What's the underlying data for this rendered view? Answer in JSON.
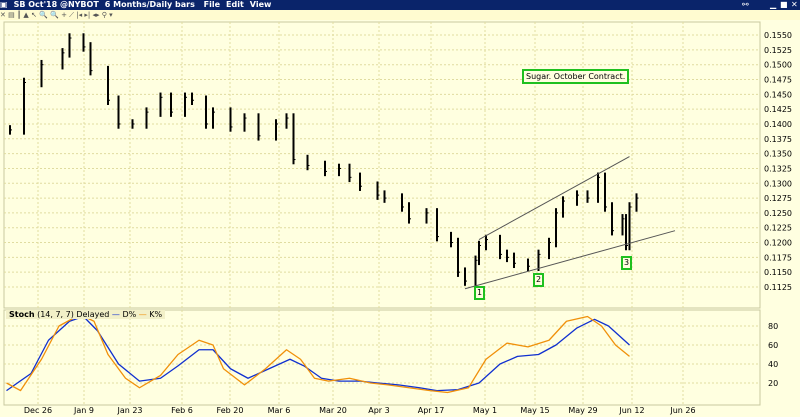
{
  "window": {
    "symbol": "SB Oct'18 @NYBOT",
    "timeframe": "6 Months/Daily bars",
    "menu": [
      "File",
      "Edit",
      "View"
    ]
  },
  "toolbar": {
    "icons": [
      "close-icon",
      "bar-icon",
      "ohlc-icon",
      "mountain-icon",
      "cursor-icon",
      "zoom-in-icon",
      "zoom-out-icon",
      "crosshair-icon",
      "trendline-icon",
      "scroll-left-icon",
      "scroll-right-icon",
      "fit-icon",
      "link-icon",
      "dropdown-icon"
    ]
  },
  "annotation": "Sugar. October Contract.",
  "wave_labels": [
    {
      "text": "1",
      "date": "2018-05-01",
      "y": 0.111
    },
    {
      "text": "2",
      "date": "2018-05-17",
      "y": 0.1133
    },
    {
      "text": "3",
      "date": "2018-06-12",
      "y": 0.1162
    }
  ],
  "stoch_legend": {
    "name": "Stoch",
    "params": "(14, 7, 7) Delayed",
    "d": "D%",
    "k": "K%"
  },
  "colors": {
    "background": "#ffffe0",
    "titlebar": "#0a246a",
    "d_line": "#1030d0",
    "k_line": "#f0900a",
    "label_border": "#1fc01f"
  },
  "chart_data": [
    {
      "type": "bar",
      "title": "",
      "yticks": [
        "0.1125",
        "0.1150",
        "0.1175",
        "0.1200",
        "0.1225",
        "0.1250",
        "0.1275",
        "0.1300",
        "0.1325",
        "0.1350",
        "0.1375",
        "0.1400",
        "0.1425",
        "0.1450",
        "0.1475",
        "0.1500",
        "0.1525",
        "0.1550"
      ],
      "ylim": [
        0.111,
        0.156
      ],
      "xticks": [
        "Dec 26",
        "Jan 9",
        "Jan 23",
        "Feb 6",
        "Feb 20",
        "Mar 6",
        "Mar 20",
        "Apr 3",
        "Apr 17",
        "May 1",
        "May 15",
        "May 29",
        "Jun 12",
        "Jun 26"
      ],
      "grid": true,
      "series": [
        {
          "x": [
            "2017-12-18",
            "2017-12-22",
            "2017-12-27",
            "2018-01-02",
            "2018-01-04",
            "2018-01-08",
            "2018-01-10",
            "2018-01-15",
            "2018-01-18",
            "2018-01-22",
            "2018-01-26",
            "2018-01-30",
            "2018-02-02",
            "2018-02-06",
            "2018-02-08",
            "2018-02-12",
            "2018-02-14",
            "2018-02-19",
            "2018-02-23",
            "2018-02-27",
            "2018-03-04",
            "2018-03-07",
            "2018-03-09",
            "2018-03-13",
            "2018-03-18",
            "2018-03-22",
            "2018-03-25",
            "2018-03-28",
            "2018-04-02",
            "2018-04-04",
            "2018-04-09",
            "2018-04-11",
            "2018-04-16",
            "2018-04-19",
            "2018-04-23",
            "2018-04-25",
            "2018-04-27",
            "2018-04-30",
            "2018-05-01",
            "2018-05-03",
            "2018-05-07",
            "2018-05-09",
            "2018-05-11",
            "2018-05-15",
            "2018-05-18",
            "2018-05-21",
            "2018-05-23",
            "2018-05-25",
            "2018-05-29",
            "2018-06-01",
            "2018-06-04",
            "2018-06-06",
            "2018-06-08",
            "2018-06-11",
            "2018-06-12",
            "2018-06-13",
            "2018-06-15"
          ],
          "close": [
            0.139,
            0.147,
            0.15,
            0.152,
            0.1545,
            0.153,
            0.149,
            0.144,
            0.14,
            0.14,
            0.142,
            0.1445,
            0.142,
            0.1445,
            0.144,
            0.14,
            0.142,
            0.1395,
            0.141,
            0.138,
            0.14,
            0.141,
            0.134,
            0.133,
            0.132,
            0.1325,
            0.131,
            0.1295,
            0.128,
            0.1275,
            0.126,
            0.124,
            0.125,
            0.121,
            0.12,
            0.115,
            0.1135,
            0.117,
            0.1195,
            0.1205,
            0.118,
            0.1175,
            0.1165,
            0.116,
            0.118,
            0.12,
            0.125,
            0.127,
            0.128,
            0.1275,
            0.131,
            0.126,
            0.122,
            0.124,
            0.1195,
            0.126,
            0.1275
          ]
        }
      ],
      "trendlines": [
        {
          "from": [
            "2018-05-01",
            0.1205
          ],
          "to": [
            "2018-06-13",
            0.1345
          ]
        },
        {
          "from": [
            "2018-04-27",
            0.1122
          ],
          "to": [
            "2018-06-26",
            0.122
          ]
        }
      ]
    },
    {
      "type": "line",
      "title": "Stoch",
      "yticks": [
        "20",
        "40",
        "60",
        "80"
      ],
      "ylim": [
        0,
        100
      ],
      "series": [
        {
          "name": "D%",
          "x": [
            "2017-12-17",
            "2017-12-24",
            "2017-12-29",
            "2018-01-04",
            "2018-01-08",
            "2018-01-12",
            "2018-01-18",
            "2018-01-24",
            "2018-01-30",
            "2018-02-04",
            "2018-02-10",
            "2018-02-14",
            "2018-02-19",
            "2018-02-24",
            "2018-03-02",
            "2018-03-08",
            "2018-03-12",
            "2018-03-17",
            "2018-03-22",
            "2018-03-28",
            "2018-04-02",
            "2018-04-08",
            "2018-04-14",
            "2018-04-19",
            "2018-04-25",
            "2018-05-01",
            "2018-05-07",
            "2018-05-12",
            "2018-05-18",
            "2018-05-23",
            "2018-05-29",
            "2018-06-03",
            "2018-06-07",
            "2018-06-13"
          ],
          "y": [
            12,
            30,
            65,
            85,
            90,
            75,
            40,
            22,
            25,
            38,
            55,
            55,
            35,
            25,
            35,
            45,
            38,
            25,
            22,
            22,
            20,
            18,
            15,
            12,
            13,
            20,
            40,
            48,
            50,
            60,
            78,
            87,
            80,
            60
          ]
        },
        {
          "name": "K%",
          "x": [
            "2017-12-17",
            "2017-12-21",
            "2017-12-27",
            "2018-01-01",
            "2018-01-07",
            "2018-01-11",
            "2018-01-15",
            "2018-01-20",
            "2018-01-24",
            "2018-01-30",
            "2018-02-04",
            "2018-02-10",
            "2018-02-14",
            "2018-02-17",
            "2018-02-23",
            "2018-03-01",
            "2018-03-07",
            "2018-03-11",
            "2018-03-15",
            "2018-03-19",
            "2018-03-25",
            "2018-03-31",
            "2018-04-05",
            "2018-04-11",
            "2018-04-17",
            "2018-04-22",
            "2018-04-28",
            "2018-05-03",
            "2018-05-09",
            "2018-05-15",
            "2018-05-21",
            "2018-05-26",
            "2018-06-01",
            "2018-06-05",
            "2018-06-09",
            "2018-06-13"
          ],
          "y": [
            20,
            12,
            45,
            80,
            92,
            85,
            50,
            25,
            15,
            28,
            50,
            65,
            60,
            35,
            18,
            35,
            55,
            45,
            25,
            22,
            25,
            20,
            18,
            15,
            12,
            10,
            15,
            45,
            62,
            58,
            65,
            85,
            90,
            80,
            60,
            48
          ]
        }
      ]
    }
  ]
}
